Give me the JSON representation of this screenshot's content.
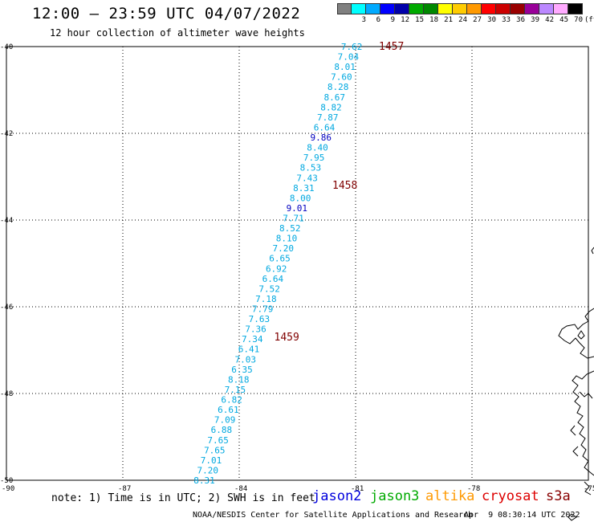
{
  "title": "12:00 – 23:59 UTC 04/07/2022",
  "subtitle": "12 hour collection of altimeter wave heights",
  "legend": {
    "unit": "(ft)",
    "labels": [
      "",
      "3",
      "6",
      "9",
      "12",
      "15",
      "18",
      "21",
      "24",
      "27",
      "30",
      "33",
      "36",
      "39",
      "42",
      "45",
      "70"
    ],
    "colors": [
      "#808080",
      "#00ffff",
      "#00aaff",
      "#0000ff",
      "#0000aa",
      "#00aa00",
      "#008800",
      "#ffff00",
      "#ffcc00",
      "#ff9900",
      "#ff0000",
      "#cc0000",
      "#990000",
      "#990099",
      "#bb88ff",
      "#ffaaff",
      "#000000"
    ]
  },
  "map": {
    "lon_range": [
      -90,
      -75
    ],
    "lat_range": [
      -50,
      -40
    ],
    "lon_ticks": [
      "-90",
      "-87",
      "-84",
      "-81",
      "-78",
      "-75"
    ],
    "lat_ticks": [
      "-40",
      "-42",
      "-44",
      "-46",
      "-48",
      "-50"
    ],
    "colors": {
      "swh": "#00a8e0",
      "swh_highlight": "#0000c0",
      "time": "#800000",
      "grid": "#000000"
    },
    "pass": {
      "start_lon": -81.1,
      "end_lon": -84.9,
      "start_lat": -40.0,
      "end_lat": -50.0,
      "heights": [
        "7.62",
        "7.04",
        "8.01",
        "7.60",
        "8.28",
        "8.67",
        "8.82",
        "7.87",
        "6.64",
        "9.86",
        "8.40",
        "7.95",
        "8.53",
        "7.43",
        "8.31",
        "8.00",
        "9.01",
        "7.71",
        "8.52",
        "8.10",
        "7.20",
        "6.65",
        "6.92",
        "6.64",
        "7.52",
        "7.18",
        "7.79",
        "7.63",
        "7.36",
        "7.34",
        "6.41",
        "7.03",
        "6.35",
        "8.18",
        "7.15",
        "6.82",
        "6.61",
        "7.09",
        "6.88",
        "7.65",
        "7.65",
        "7.01",
        "7.20",
        "8.31"
      ],
      "highlighted": [
        "9.86",
        "9.01"
      ]
    },
    "times": [
      {
        "label": "1457",
        "lon": -80.4,
        "lat": -40.0
      },
      {
        "label": "1458",
        "lon": -81.6,
        "lat": -43.2
      },
      {
        "label": "1459",
        "lon": -83.1,
        "lat": -46.7
      }
    ]
  },
  "footer": {
    "note": "note: 1) Time is in UTC; 2) SWH is in feet",
    "satellites": [
      {
        "label": "jason2",
        "color": "#0000dd"
      },
      {
        "label": "jason3",
        "color": "#00aa00"
      },
      {
        "label": "altika",
        "color": "#ff9900"
      },
      {
        "label": "cryosat",
        "color": "#dd0000"
      },
      {
        "label": "s3a",
        "color": "#880000"
      }
    ],
    "credit": "NOAA/NESDIS Center for Satellite Applications and Research",
    "timestamp": "Apr  9 08:30:14 UTC 2022"
  }
}
